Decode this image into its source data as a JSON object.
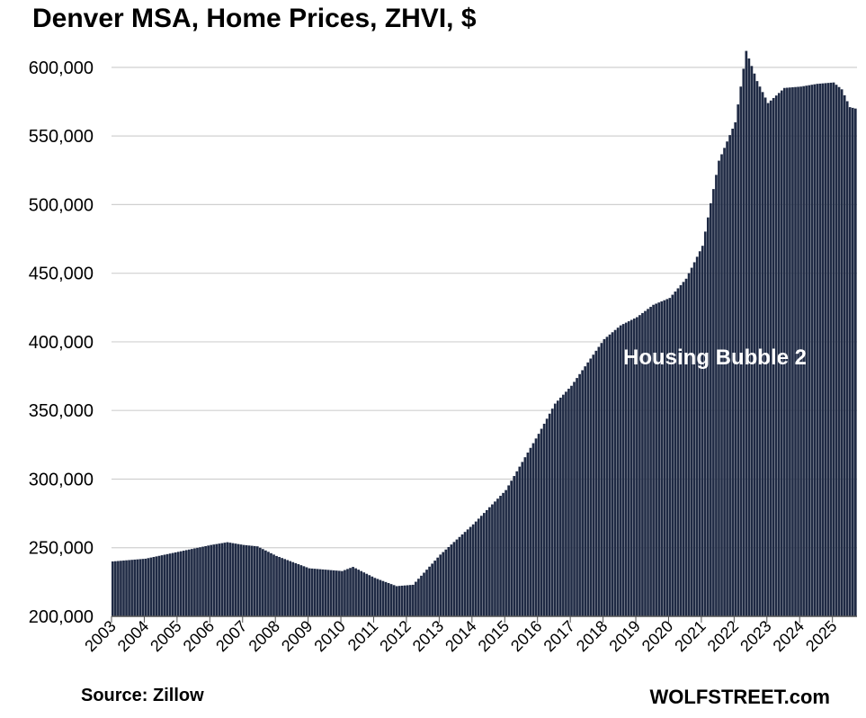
{
  "chart_data": {
    "type": "bar",
    "title": "Denver MSA, Home Prices, ZHVI, $",
    "xlabel": "",
    "ylabel": "",
    "ylim": [
      200000,
      615000
    ],
    "yticks": [
      200000,
      250000,
      300000,
      350000,
      400000,
      450000,
      500000,
      550000,
      600000
    ],
    "ytick_labels": [
      "200,000",
      "250,000",
      "300,000",
      "350,000",
      "400,000",
      "450,000",
      "500,000",
      "550,000",
      "600,000"
    ],
    "x_start": "2003-01",
    "frequency": "monthly",
    "xtick_labels": [
      "2003",
      "2004",
      "2005",
      "2006",
      "2007",
      "2008",
      "2009",
      "2010",
      "2011",
      "2012",
      "2013",
      "2014",
      "2015",
      "2016",
      "2017",
      "2018",
      "2019",
      "2020",
      "2021",
      "2022",
      "2023",
      "2024",
      "2025"
    ],
    "grid": true,
    "legend": "none",
    "bar_color": "#1f2a44",
    "annotation": "Housing Bubble 2",
    "values_anchor": [
      {
        "date": "2003-01",
        "value": 240000
      },
      {
        "date": "2004-01",
        "value": 242000
      },
      {
        "date": "2005-01",
        "value": 247000
      },
      {
        "date": "2006-01",
        "value": 252000
      },
      {
        "date": "2006-07",
        "value": 254000
      },
      {
        "date": "2007-01",
        "value": 252000
      },
      {
        "date": "2007-06",
        "value": 251000
      },
      {
        "date": "2008-01",
        "value": 244000
      },
      {
        "date": "2009-01",
        "value": 235000
      },
      {
        "date": "2010-01",
        "value": 233000
      },
      {
        "date": "2010-05",
        "value": 236000
      },
      {
        "date": "2011-01",
        "value": 228000
      },
      {
        "date": "2011-09",
        "value": 222000
      },
      {
        "date": "2012-03",
        "value": 223000
      },
      {
        "date": "2013-01",
        "value": 245000
      },
      {
        "date": "2014-01",
        "value": 267000
      },
      {
        "date": "2015-01",
        "value": 292000
      },
      {
        "date": "2016-01",
        "value": 333000
      },
      {
        "date": "2016-07",
        "value": 355000
      },
      {
        "date": "2017-01",
        "value": 368000
      },
      {
        "date": "2017-07",
        "value": 385000
      },
      {
        "date": "2018-01",
        "value": 402000
      },
      {
        "date": "2018-07",
        "value": 412000
      },
      {
        "date": "2019-01",
        "value": 418000
      },
      {
        "date": "2019-07",
        "value": 427000
      },
      {
        "date": "2020-01",
        "value": 432000
      },
      {
        "date": "2020-07",
        "value": 446000
      },
      {
        "date": "2021-01",
        "value": 470000
      },
      {
        "date": "2021-07",
        "value": 532000
      },
      {
        "date": "2022-01",
        "value": 560000
      },
      {
        "date": "2022-05",
        "value": 612000
      },
      {
        "date": "2022-09",
        "value": 590000
      },
      {
        "date": "2023-01",
        "value": 574000
      },
      {
        "date": "2023-07",
        "value": 585000
      },
      {
        "date": "2024-01",
        "value": 586000
      },
      {
        "date": "2024-07",
        "value": 588000
      },
      {
        "date": "2025-01",
        "value": 589000
      },
      {
        "date": "2025-04",
        "value": 584000
      },
      {
        "date": "2025-07",
        "value": 571000
      },
      {
        "date": "2025-09",
        "value": 570000
      }
    ],
    "source": "Source: Zillow",
    "credit": "WOLFSTREET.com"
  }
}
